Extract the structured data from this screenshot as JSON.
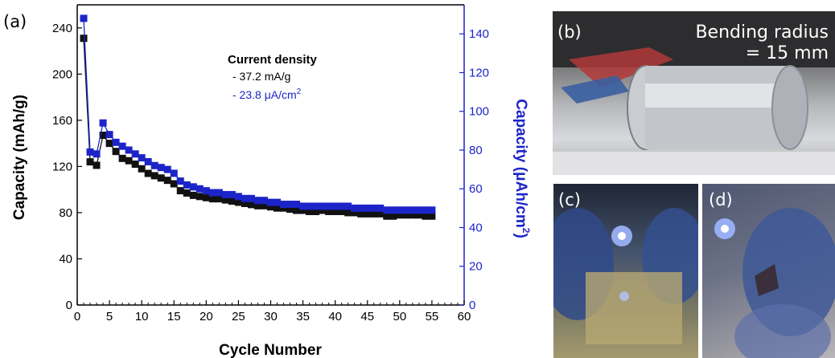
{
  "panel_labels": {
    "a": "(a)",
    "b": "(b)",
    "c": "(c)",
    "d": "(d)"
  },
  "photo_b": {
    "text_line1": "Bending radius",
    "text_line2": "= 15 mm"
  },
  "legend": {
    "title": "Current density",
    "item1": "- 37.2 mA/g",
    "item2_prefix": "- 23.8 ",
    "item2_unit": "μA/cm",
    "item2_sup": "2"
  },
  "colors": {
    "black_series": "#111111",
    "blue_series": "#1c24c8",
    "axis_right": "#1c24c8"
  },
  "chart_data": {
    "type": "scatter",
    "xlabel": "Cycle Number",
    "ylabel_left": "Capacity (mAh/g)",
    "ylabel_right_prefix": "Capacity (",
    "ylabel_right_unit": "μAh/cm",
    "ylabel_right_sup": "2",
    "ylabel_right_suffix": ")",
    "xlim": [
      0,
      60
    ],
    "ylim_left": [
      0,
      260
    ],
    "ylim_right": [
      0,
      155
    ],
    "xticks": [
      0,
      5,
      10,
      15,
      20,
      25,
      30,
      35,
      40,
      45,
      50,
      55,
      60
    ],
    "yticks_left": [
      0,
      40,
      80,
      120,
      160,
      200,
      240
    ],
    "yticks_right": [
      0,
      20,
      40,
      60,
      80,
      100,
      120,
      140
    ],
    "x": [
      1,
      2,
      3,
      4,
      5,
      6,
      7,
      8,
      9,
      10,
      11,
      12,
      13,
      14,
      15,
      16,
      17,
      18,
      19,
      20,
      21,
      22,
      23,
      24,
      25,
      26,
      27,
      28,
      29,
      30,
      31,
      32,
      33,
      34,
      35,
      36,
      37,
      38,
      39,
      40,
      41,
      42,
      43,
      44,
      45,
      46,
      47,
      48,
      49,
      50,
      51,
      52,
      53,
      54,
      55
    ],
    "series": [
      {
        "name": "- 37.2 mA/g",
        "axis": "left",
        "values": [
          231,
          124,
          121,
          147,
          140,
          133,
          127,
          125,
          122,
          118,
          114,
          112,
          110,
          108,
          105,
          99,
          97,
          95,
          94,
          93,
          92,
          92,
          91,
          90,
          89,
          88,
          87,
          86,
          86,
          85,
          84,
          84,
          83,
          82,
          82,
          81,
          81,
          82,
          81,
          81,
          81,
          80,
          80,
          79,
          79,
          79,
          79,
          77,
          77,
          78,
          78,
          78,
          78,
          77,
          77
        ]
      },
      {
        "name": "- 23.8 μA/cm2",
        "axis": "right",
        "values": [
          148,
          79,
          78,
          94,
          88,
          84,
          82,
          80,
          78,
          76,
          74,
          72,
          71,
          70,
          68,
          64,
          62,
          61,
          60,
          59,
          58,
          58,
          57,
          57,
          56,
          55,
          55,
          54,
          54,
          53,
          53,
          52,
          52,
          52,
          51,
          51,
          51,
          51,
          51,
          51,
          51,
          51,
          50,
          50,
          50,
          50,
          50,
          49,
          49,
          49,
          49,
          49,
          49,
          49,
          49
        ]
      }
    ]
  }
}
